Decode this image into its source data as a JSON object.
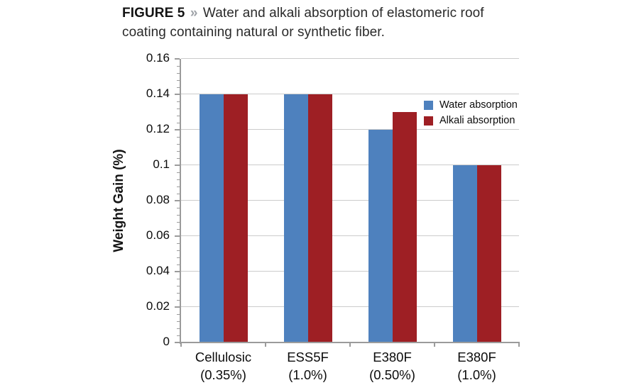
{
  "figure": {
    "label": "FIGURE 5",
    "separator": "»",
    "caption": "Water and alkali absorption of elastomeric roof coating containing natural or synthetic fiber."
  },
  "colors": {
    "water_series": "#4E81BE",
    "alkali_series": "#9E1F24",
    "gridline": "#CBCBCB",
    "axis": "#9B9B9B",
    "text": "#0C0C0C",
    "title_separator": "#9FA3A8"
  },
  "chart_data": {
    "type": "bar",
    "title": "",
    "xlabel": "",
    "ylabel": "Weight Gain (%)",
    "ylim": [
      0,
      0.16
    ],
    "ytick_step": 0.02,
    "ytick_labels": [
      "0",
      "0.02",
      "0.04",
      "0.06",
      "0.08",
      "0.1",
      "0.12",
      "0.14",
      "0.16"
    ],
    "minor_tick_step": 0.004,
    "grid": true,
    "legend_position": "inside-top-right",
    "categories": [
      {
        "line1": "Cellulosic",
        "line2": "(0.35%)"
      },
      {
        "line1": "ESS5F",
        "line2": "(1.0%)"
      },
      {
        "line1": "E380F",
        "line2": "(0.50%)"
      },
      {
        "line1": "E380F",
        "line2": "(1.0%)"
      }
    ],
    "series": [
      {
        "name": "Water absorption",
        "color": "#4E81BE",
        "values": [
          0.14,
          0.14,
          0.12,
          0.1
        ]
      },
      {
        "name": "Alkali absorption",
        "color": "#9E1F24",
        "values": [
          0.14,
          0.14,
          0.13,
          0.1
        ]
      }
    ]
  }
}
